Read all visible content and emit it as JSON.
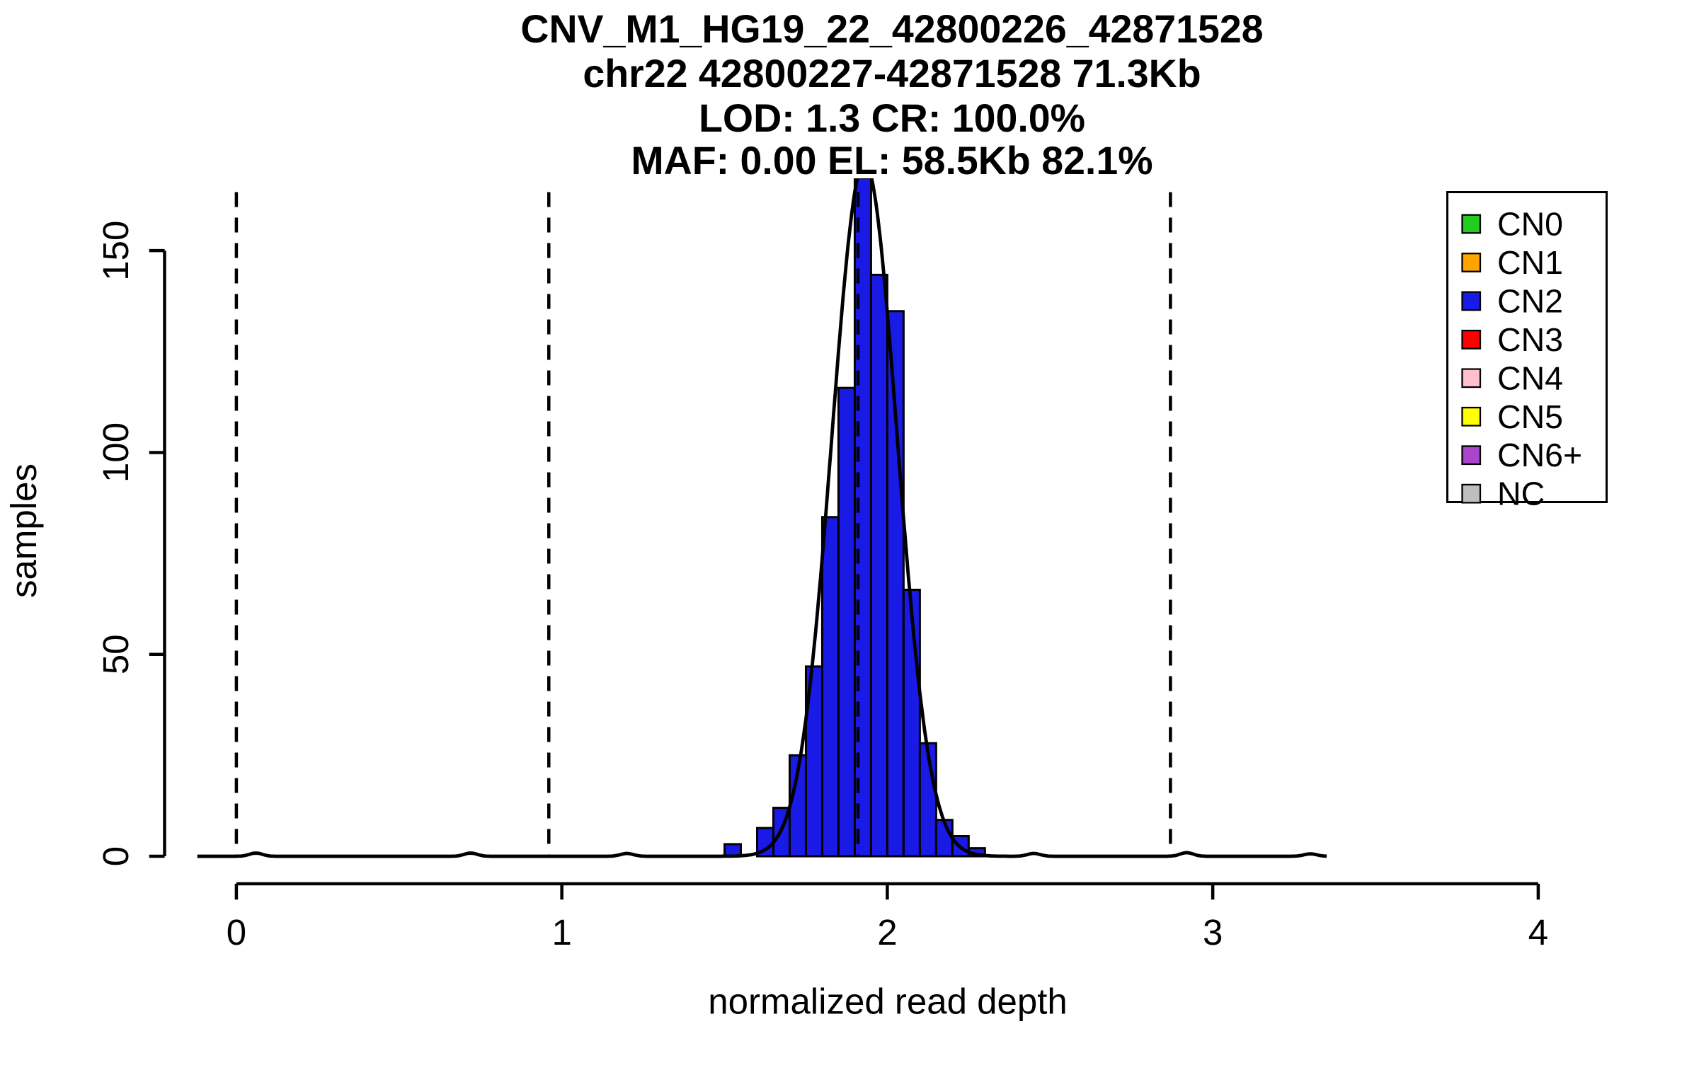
{
  "chart_data": {
    "type": "bar",
    "title_lines": [
      "CNV_M1_HG19_22_42800226_42871528",
      "chr22 42800227-42871528 71.3Kb",
      "LOD: 1.3 CR: 100.0%",
      "MAF: 0.00 EL: 58.5Kb 82.1%"
    ],
    "xlabel": "normalized read depth",
    "ylabel": "samples",
    "x_ticks": [
      0,
      1,
      2,
      3,
      4
    ],
    "y_ticks": [
      0,
      50,
      100,
      150
    ],
    "xlim": [
      -0.15,
      4.15
    ],
    "ylim": [
      0,
      168
    ],
    "histogram": {
      "series_label": "CN2",
      "bin_start": 1.5,
      "bin_width": 0.05,
      "counts": [
        3,
        0,
        7,
        12,
        25,
        47,
        84,
        116,
        168,
        144,
        135,
        66,
        28,
        9,
        5,
        2
      ],
      "bar_color": "#1a1ae6",
      "bar_border": "#000000"
    },
    "fit_curve": {
      "type": "gaussian",
      "mean": 1.93,
      "sd": 0.1,
      "peak": 172,
      "color": "#000000"
    },
    "baseline": {
      "x_start": -0.12,
      "x_end": 3.35,
      "minor_bumps": [
        {
          "x": 0.06,
          "h": 0.8
        },
        {
          "x": 0.72,
          "h": 0.8
        },
        {
          "x": 1.2,
          "h": 0.7
        },
        {
          "x": 2.45,
          "h": 0.7
        },
        {
          "x": 2.92,
          "h": 0.9
        },
        {
          "x": 3.3,
          "h": 0.6
        }
      ]
    },
    "dashed_lines_x": [
      0,
      0.96,
      1.91,
      2.87
    ],
    "legend": {
      "position": "top-right",
      "items": [
        {
          "label": "CN0",
          "color": "#22CC22"
        },
        {
          "label": "CN1",
          "color": "#FFA500"
        },
        {
          "label": "CN2",
          "color": "#1a1ae6"
        },
        {
          "label": "CN3",
          "color": "#FF0000"
        },
        {
          "label": "CN4",
          "color": "#FFC0CB"
        },
        {
          "label": "CN5",
          "color": "#FFFF00"
        },
        {
          "label": "CN6+",
          "color": "#AA44CC"
        },
        {
          "label": "NC",
          "color": "#BEBEBE"
        }
      ]
    }
  }
}
